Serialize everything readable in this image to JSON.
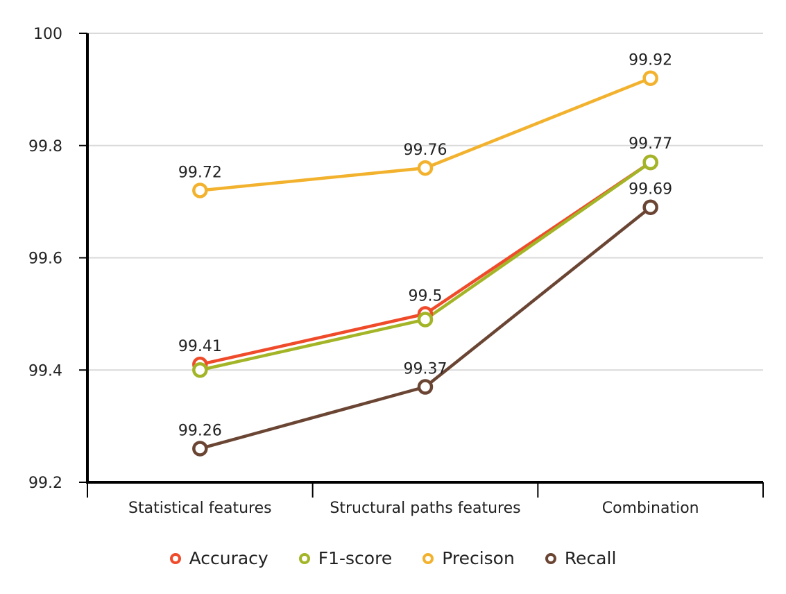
{
  "chart_data": {
    "type": "line",
    "categories": [
      "Statistical features",
      "Structural paths features",
      "Combination"
    ],
    "ylim": [
      99.2,
      100
    ],
    "yticks": [
      "99.2",
      "99.4",
      "99.6",
      "99.8",
      "100"
    ],
    "grid": true,
    "legend_position": "bottom",
    "series": [
      {
        "name": "Accuracy",
        "color": "#ef4b2b",
        "values": [
          99.41,
          99.5,
          99.77
        ],
        "labels": [
          "99.41",
          "99.5",
          ""
        ]
      },
      {
        "name": "F1-score",
        "color": "#a3b527",
        "values": [
          99.4,
          99.49,
          99.77
        ],
        "labels": [
          "",
          "",
          ""
        ]
      },
      {
        "name": "Precison",
        "color": "#f2b22e",
        "values": [
          99.72,
          99.76,
          99.92
        ],
        "labels": [
          "99.72",
          "99.76",
          "99.92"
        ]
      },
      {
        "name": "Recall",
        "color": "#6b4533",
        "values": [
          99.26,
          99.37,
          99.69
        ],
        "labels": [
          "99.26",
          "99.37",
          "99.69"
        ]
      }
    ],
    "extra_labels": [
      {
        "category_index": 2,
        "value": 99.77,
        "text": "99.77"
      }
    ]
  }
}
